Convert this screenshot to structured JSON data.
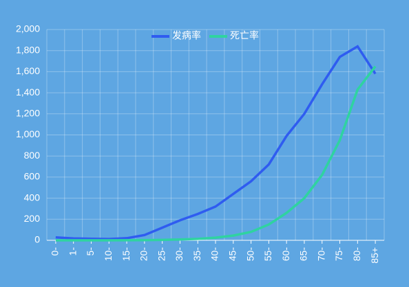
{
  "chart_data": {
    "type": "line",
    "categories": [
      "0-",
      "1-",
      "5-",
      "10-",
      "15-",
      "20-",
      "25-",
      "30-",
      "35-",
      "40-",
      "45-",
      "50-",
      "55-",
      "60-",
      "65-",
      "70-",
      "75-",
      "80-",
      "85+"
    ],
    "series": [
      {
        "name": "发病率",
        "color": "#2f5cf0",
        "values": [
          28,
          18,
          15,
          12,
          20,
          50,
          120,
          190,
          250,
          320,
          440,
          560,
          720,
          990,
          1200,
          1480,
          1740,
          1840,
          1580
        ]
      },
      {
        "name": "死亡率",
        "color": "#2fd3a0",
        "values": [
          0,
          0,
          0,
          0,
          1,
          2,
          4,
          8,
          14,
          25,
          45,
          80,
          150,
          260,
          400,
          620,
          950,
          1430,
          1650
        ]
      }
    ],
    "ylim": [
      0,
      2000
    ],
    "yticks": [
      0,
      200,
      400,
      600,
      800,
      {
        "value": 1000,
        "label": "1,000"
      },
      {
        "value": 1200,
        "label": "1,200"
      },
      {
        "value": 1400,
        "label": "1,400"
      },
      {
        "value": 1600,
        "label": "1,600"
      },
      {
        "value": 1800,
        "label": "1,800"
      },
      {
        "value": 2000,
        "label": "2,000"
      }
    ],
    "grid": true,
    "legend": "top"
  }
}
